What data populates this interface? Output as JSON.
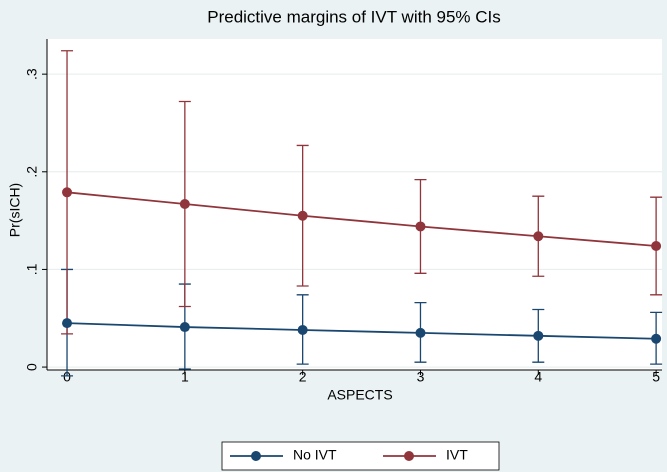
{
  "chart_data": {
    "type": "line",
    "title": "Predictive margins of IVT with 95% CIs",
    "x_label": "ASPECTS",
    "y_label": "Pr(sICH)",
    "x": [
      0,
      1,
      2,
      3,
      4,
      5
    ],
    "series": [
      {
        "name": "No IVT",
        "color": "#1a476f",
        "values": [
          0.045,
          0.041,
          0.038,
          0.035,
          0.032,
          0.029
        ],
        "lower": [
          -0.009,
          -0.002,
          0.003,
          0.005,
          0.005,
          0.003
        ],
        "upper": [
          0.1,
          0.085,
          0.074,
          0.066,
          0.059,
          0.056
        ]
      },
      {
        "name": "IVT",
        "color": "#90353b",
        "values": [
          0.179,
          0.167,
          0.155,
          0.144,
          0.134,
          0.124
        ],
        "lower": [
          0.034,
          0.062,
          0.083,
          0.096,
          0.093,
          0.074
        ],
        "upper": [
          0.324,
          0.272,
          0.227,
          0.192,
          0.175,
          0.174
        ]
      }
    ],
    "xlim": [
      -0.17,
      5.05
    ],
    "xticks": [
      0,
      1,
      2,
      3,
      4,
      5
    ],
    "ylim": [
      -0.003,
      0.336
    ],
    "yticks": [
      0,
      {
        "value": 0.1,
        "label": ".1"
      },
      {
        "value": 0.2,
        "label": ".2"
      },
      {
        "value": 0.3,
        "label": ".3"
      }
    ],
    "grid": true,
    "legend": "bottom"
  }
}
